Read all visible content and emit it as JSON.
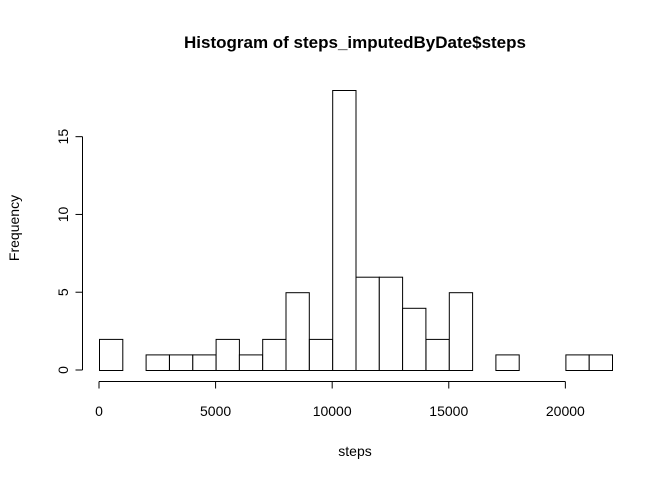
{
  "chart_data": {
    "type": "bar",
    "title": "Histogram of steps_imputedByDate$steps",
    "xlabel": "steps",
    "ylabel": "Frequency",
    "bin_width": 1000,
    "bin_edges_start": [
      0,
      1000,
      2000,
      3000,
      4000,
      5000,
      6000,
      7000,
      8000,
      9000,
      10000,
      11000,
      12000,
      13000,
      14000,
      15000,
      16000,
      17000,
      18000,
      19000,
      20000,
      21000
    ],
    "values": [
      2,
      0,
      1,
      1,
      1,
      2,
      1,
      2,
      5,
      2,
      18,
      6,
      6,
      4,
      2,
      5,
      0,
      1,
      0,
      0,
      1,
      1
    ],
    "xlim": [
      0,
      22000
    ],
    "ylim": [
      0,
      18
    ],
    "xticks": [
      0,
      5000,
      10000,
      15000,
      20000
    ],
    "xtick_labels": [
      "0",
      "5000",
      "10000",
      "15000",
      "20000"
    ],
    "yticks": [
      0,
      5,
      10,
      15
    ],
    "ytick_labels": [
      "0",
      "5",
      "10",
      "15"
    ],
    "grid": false,
    "colors": {
      "bar_fill": "#ffffff",
      "bar_stroke": "#000000"
    }
  }
}
